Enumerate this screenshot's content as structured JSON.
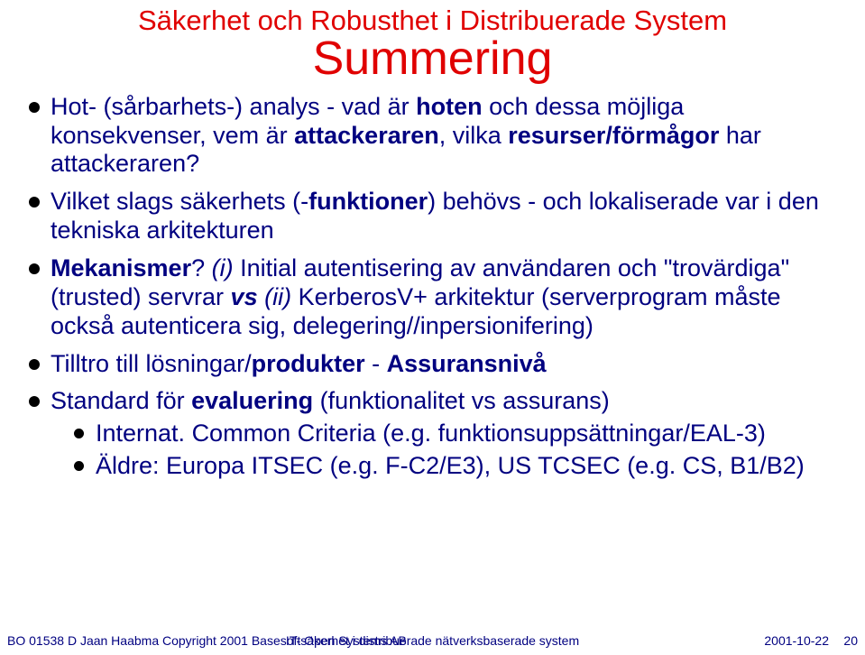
{
  "colors": {
    "title_color": "#e00000",
    "body_color": "#000080",
    "bullet_color": "#000000",
    "background": "#ffffff"
  },
  "typography": {
    "subtitle_fontsize": 31,
    "title_fontsize": 52,
    "body_fontsize": 27,
    "footer_fontsize": 14,
    "font_family": "Arial"
  },
  "header": {
    "subtitle": "Säkerhet och Robusthet i Distribuerade System",
    "title": "Summering"
  },
  "bullets": {
    "b1": {
      "t1": "Hot- (sårbarhets-) analys - vad är ",
      "t2_bold": "hoten",
      "t3": " och dessa möjliga konsekvenser, vem är ",
      "t4_bold": "attackeraren",
      "t5": ", vilka ",
      "t6_bold": "resurser/förmågor",
      "t7": " har attackeraren?"
    },
    "b2": {
      "t1": "Vilket slags säkerhets (-",
      "t2_bold": "funktioner",
      "t3": ") behövs - och lokaliserade var i den tekniska arkitekturen"
    },
    "b3": {
      "t1_bold": "Mekanismer",
      "t2": "? ",
      "t3_italic": "(i)",
      "t4": " Initial autentisering av användaren och \"trovärdiga\" (trusted) servrar ",
      "t5_bolditalic": "vs",
      "t6": " ",
      "t7_italic": "(ii)",
      "t8": " KerberosV+ arkitektur (serverprogram måste också autenticera sig, delegering//inpersionifering)"
    },
    "b4": {
      "t1": "Tilltro till lösningar/",
      "t2_bold": "produkter",
      "t3": " - ",
      "t4_bold": "Assuransnivå"
    },
    "b5": {
      "t1": "Standard för ",
      "t2_bold": "evaluering",
      "t3": " (funktionalitet vs assurans)",
      "sub": {
        "s1": "Internat. Common Criteria (e.g. funktionsuppsättningar/EAL-3)",
        "s2": "Äldre: Europa ITSEC (e.g. F-C2/E3), US TCSEC (e.g. CS, B1/B2)"
      }
    }
  },
  "footer": {
    "left": "BO 01538 D   Jaan Haabma     Copyright 2001 Basesoft Open Systems AB",
    "center": "IT-säkerhet i distribuerade nätverksbaserade system",
    "date": "2001-10-22",
    "page": "20"
  }
}
